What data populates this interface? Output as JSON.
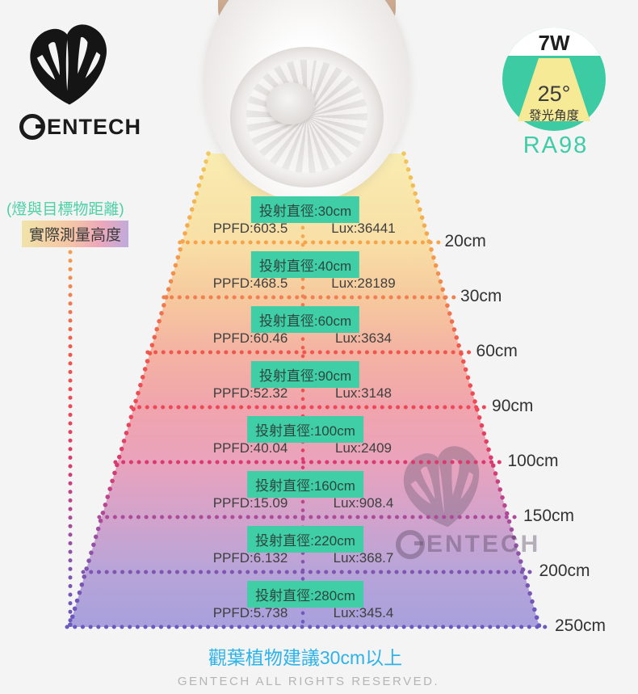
{
  "brand": {
    "wordmark": "GENTECH",
    "wordmark_rest": "ENTECH"
  },
  "spec": {
    "wattage": "7W",
    "beam_angle": "25°",
    "beam_angle_label": "發光角度",
    "cri": "RA98"
  },
  "legend": {
    "distance_note": "(燈與目標物距離)",
    "height_label": "實際測量高度"
  },
  "rows": [
    {
      "diameter_label": "投射直徑:30cm",
      "ppfd": "PPFD:603.5",
      "lux": "Lux:36441",
      "height": "20cm"
    },
    {
      "diameter_label": "投射直徑:40cm",
      "ppfd": "PPFD:468.5",
      "lux": "Lux:28189",
      "height": "30cm"
    },
    {
      "diameter_label": "投射直徑:60cm",
      "ppfd": "PPFD:60.46",
      "lux": "Lux:3634",
      "height": "60cm"
    },
    {
      "diameter_label": "投射直徑:90cm",
      "ppfd": "PPFD:52.32",
      "lux": "Lux:3148",
      "height": "90cm"
    },
    {
      "diameter_label": "投射直徑:100cm",
      "ppfd": "PPFD:40.04",
      "lux": "Lux:2409",
      "height": "100cm"
    },
    {
      "diameter_label": "投射直徑:160cm",
      "ppfd": "PPFD:15.09",
      "lux": "Lux:908.4",
      "height": "150cm"
    },
    {
      "diameter_label": "投射直徑:220cm",
      "ppfd": "PPFD:6.132",
      "lux": "Lux:368.7",
      "height": "200cm"
    },
    {
      "diameter_label": "投射直徑:280cm",
      "ppfd": "PPFD:5.738",
      "lux": "Lux:345.4",
      "height": "250cm"
    }
  ],
  "watermark": {
    "wordmark_rest": "ENTECH"
  },
  "footer": {
    "advice": "觀葉植物建議30cm以上",
    "copyright": "GENTECH ALL RIGHTS RESERVED."
  },
  "colors": {
    "accent_teal": "#3fcea6",
    "advice_blue": "#2eb3e9",
    "cone_top_yellow": "#f9ecb0",
    "cone_bottom_purple": "#a8a0dc",
    "row_line_colors": [
      "#F6A44C",
      "#F0804F",
      "#F0574C",
      "#ED4858",
      "#DA3A6E",
      "#AD4B99",
      "#7F55B0",
      "#6A59BF"
    ]
  }
}
